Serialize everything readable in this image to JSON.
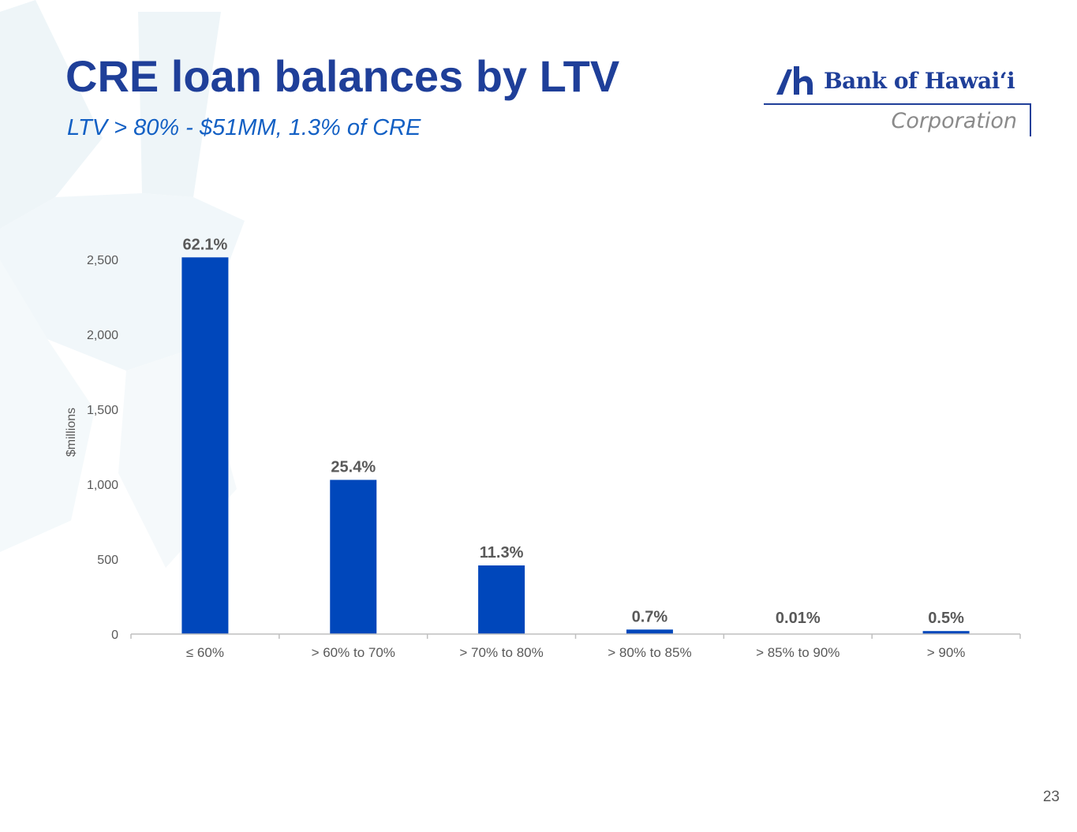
{
  "slide": {
    "title": "CRE loan balances by LTV",
    "subtitle": "LTV > 80% - $51MM, 1.3% of CRE",
    "page_number": "23"
  },
  "logo": {
    "name": "Bank of Hawai‘i",
    "subtitle": "Corporation"
  },
  "colors": {
    "title": "#1f3f99",
    "subtitle": "#1360c4",
    "bar": "#0047bb",
    "data_label": "#595959",
    "axis_text": "#595959"
  },
  "chart_data": {
    "type": "bar",
    "categories": [
      "≤ 60%",
      "> 60% to 70%",
      "> 70% to 80%",
      "> 80% to 85%",
      "> 85% to 90%",
      "> 90%"
    ],
    "values": [
      2514,
      1029,
      458,
      30,
      0.4,
      20
    ],
    "data_labels": [
      "62.1%",
      "25.4%",
      "11.3%",
      "0.7%",
      "0.01%",
      "0.5%"
    ],
    "title": "",
    "xlabel": "",
    "ylabel": "$millions",
    "ylim": [
      0,
      2500
    ],
    "yticks": [
      0,
      500,
      1000,
      1500,
      2000,
      2500
    ],
    "ytick_labels": [
      "0",
      "500",
      "1,000",
      "1,500",
      "2,000",
      "2,500"
    ],
    "grid": false,
    "legend": "none"
  }
}
